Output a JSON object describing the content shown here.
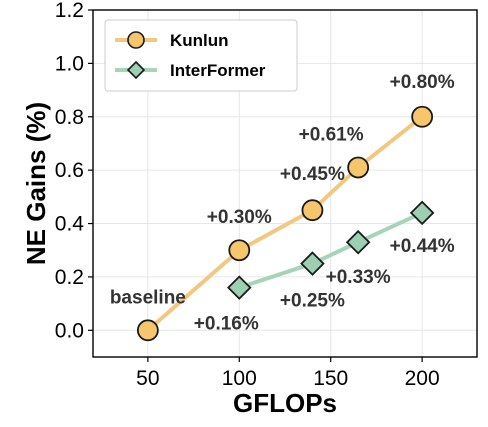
{
  "chart_data": {
    "type": "line",
    "xlabel": "GFLOPs",
    "ylabel": "NE Gains (%)",
    "xlim": [
      20,
      230
    ],
    "ylim": [
      -0.1,
      1.2
    ],
    "xticks": [
      50,
      100,
      150,
      200
    ],
    "xtick_labels": [
      "50",
      "100",
      "150",
      "200"
    ],
    "yticks": [
      0.0,
      0.2,
      0.4,
      0.6,
      0.8,
      1.0,
      1.2
    ],
    "ytick_labels": [
      "0.0",
      "0.2",
      "0.4",
      "0.6",
      "0.8",
      "1.0",
      "1.2"
    ],
    "grid": true,
    "legend_position": "top-left",
    "series": [
      {
        "name": "Kunlun",
        "marker": "circle",
        "line_color": "#f2c77e",
        "marker_fill": "#f6c66d",
        "x": [
          50,
          100,
          140,
          165,
          200
        ],
        "y": [
          0.0,
          0.3,
          0.45,
          0.61,
          0.8
        ]
      },
      {
        "name": "InterFormer",
        "marker": "diamond",
        "line_color": "#a7d4b9",
        "marker_fill": "#9dd0b2",
        "x": [
          100,
          140,
          165,
          200
        ],
        "y": [
          0.16,
          0.25,
          0.33,
          0.44
        ]
      }
    ],
    "annotations": [
      {
        "text": "baseline",
        "x": 50,
        "y": 0.0
      },
      {
        "text": "+0.30%",
        "x": 100,
        "y": 0.3
      },
      {
        "text": "+0.45%",
        "x": 140,
        "y": 0.45
      },
      {
        "text": "+0.61%",
        "x": 165,
        "y": 0.61
      },
      {
        "text": "+0.80%",
        "x": 200,
        "y": 0.8
      },
      {
        "text": "+0.16%",
        "x": 100,
        "y": 0.16
      },
      {
        "text": "+0.25%",
        "x": 140,
        "y": 0.25
      },
      {
        "text": "+0.33%",
        "x": 165,
        "y": 0.33
      },
      {
        "text": "+0.44%",
        "x": 200,
        "y": 0.44
      }
    ]
  }
}
